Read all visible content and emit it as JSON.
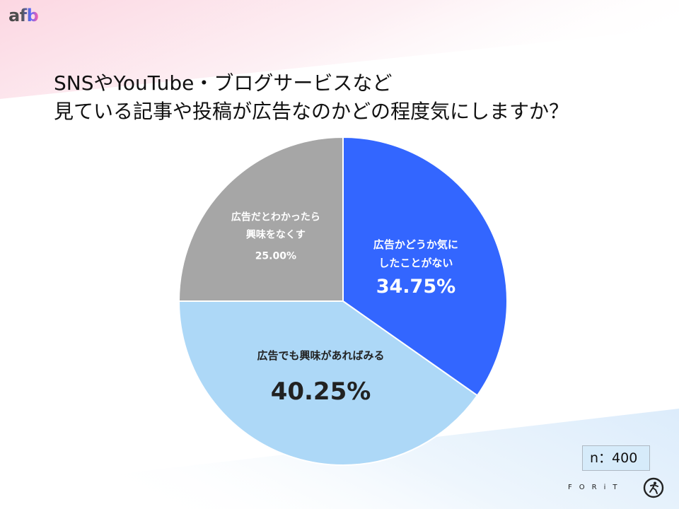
{
  "logo": {
    "text": "afb"
  },
  "title": {
    "line1": "SNSやYouTube・ブログサービスなど",
    "line2": "見ている記事や投稿が広告なのかどの程度気にしますか？"
  },
  "chart_data": {
    "type": "pie",
    "start": "12 o'clock, clockwise",
    "slices": [
      {
        "label_lines": [
          "広告かどうか気に",
          "したことがない"
        ],
        "value": 34.75,
        "value_text": "34.75%",
        "color": "#3366ff",
        "text_color": "#ffffff"
      },
      {
        "label_lines": [
          "広告でも興味があればみる"
        ],
        "value": 40.25,
        "value_text": "40.25%",
        "color": "#add8f7",
        "text_color": "#222222"
      },
      {
        "label_lines": [
          "広告だとわかったら",
          "興味をなくす"
        ],
        "value": 25.0,
        "value_text": "25.00%",
        "color": "#a6a6a6",
        "text_color": "#ffffff"
      }
    ]
  },
  "sample": {
    "text": "n：400"
  },
  "footer": {
    "brand_text": "FORiT",
    "mark_icon": "forit-runner-icon"
  },
  "colors": {
    "background_top_left": "#fde3ea",
    "background_bottom_right": "#e3f1fc"
  }
}
